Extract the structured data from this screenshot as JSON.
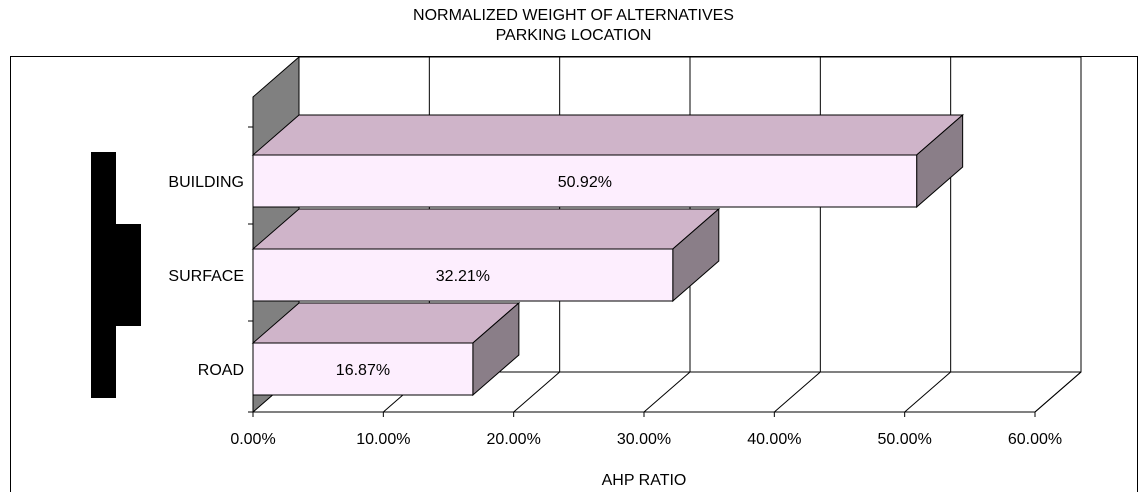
{
  "chart_data": {
    "type": "bar",
    "orientation": "horizontal",
    "three_d": true,
    "title": "NORMALIZED WEIGHT OF ALTERNATIVES",
    "subtitle": "PARKING LOCATION",
    "xlabel": "AHP RATIO",
    "ylabel": "",
    "categories": [
      "ROAD",
      "SURFACE",
      "BUILDING"
    ],
    "values": [
      16.87,
      32.21,
      50.92
    ],
    "data_labels": [
      "16.87%",
      "32.21%",
      "50.92%"
    ],
    "xlim": [
      0,
      60
    ],
    "x_ticks": [
      0,
      10,
      20,
      30,
      40,
      50,
      60
    ],
    "x_tick_labels": [
      "0.00%",
      "10.00%",
      "20.00%",
      "30.00%",
      "40.00%",
      "50.00%",
      "60.00%"
    ],
    "grid": true,
    "legend": "left",
    "colors": {
      "bar_front": "#fdeefe",
      "bar_top": "#cfb4c9",
      "bar_side": "#8a7e88",
      "floor": "#808080",
      "legend_marker": "#000000"
    }
  }
}
